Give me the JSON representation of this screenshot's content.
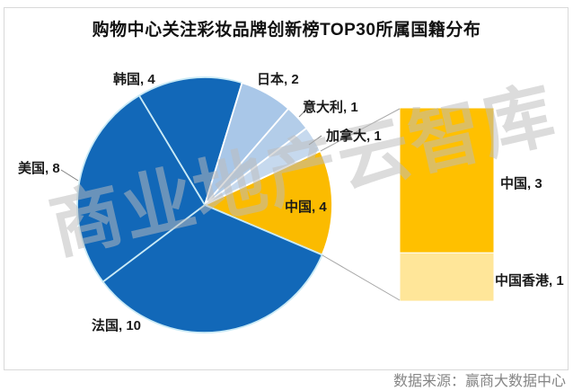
{
  "title": "购物中心关注彩妆品牌创新榜TOP30所属国籍分布",
  "watermark": "商业地产云智库",
  "source": "数据来源：赢商大数据中心",
  "chart_data": {
    "type": "pie",
    "variant": "pie-of-pie-with-bar",
    "title": "购物中心关注彩妆品牌创新榜TOP30所属国籍分布",
    "total": 30,
    "unit_deg": 12,
    "start_angle_deg": -31,
    "pie_slices": [
      {
        "label": "韩国",
        "value": 4,
        "display": "韩国, 4",
        "color": "#1268B8",
        "stroke": "#C9EAF6"
      },
      {
        "label": "日本",
        "value": 2,
        "display": "日本, 2",
        "color": "#A9C7E8",
        "stroke": "#FFFFFF"
      },
      {
        "label": "意大利",
        "value": 1,
        "display": "意大利, 1",
        "color": "#B3CDE9",
        "stroke": "#FFFFFF"
      },
      {
        "label": "加拿大",
        "value": 1,
        "display": "加拿大, 1",
        "color": "#C6D9EE",
        "stroke": "#FFFFFF"
      },
      {
        "label": "中国",
        "value": 4,
        "display": "中国, 4",
        "color": "#FBBB00",
        "stroke": "#FFFFFF"
      },
      {
        "label": "法国",
        "value": 10,
        "display": "法国, 10",
        "color": "#1268B8",
        "stroke": "#C9EAF6"
      },
      {
        "label": "美国",
        "value": 8,
        "display": "美国, 8",
        "color": "#1268B8",
        "stroke": "#C9EAF6"
      }
    ],
    "bar_segments": [
      {
        "label": "中国",
        "value": 3,
        "display": "中国, 3",
        "color": "#FFC000"
      },
      {
        "label": "中国香港",
        "value": 1,
        "display": "中国香港, 1",
        "color": "#FFE699"
      }
    ]
  }
}
